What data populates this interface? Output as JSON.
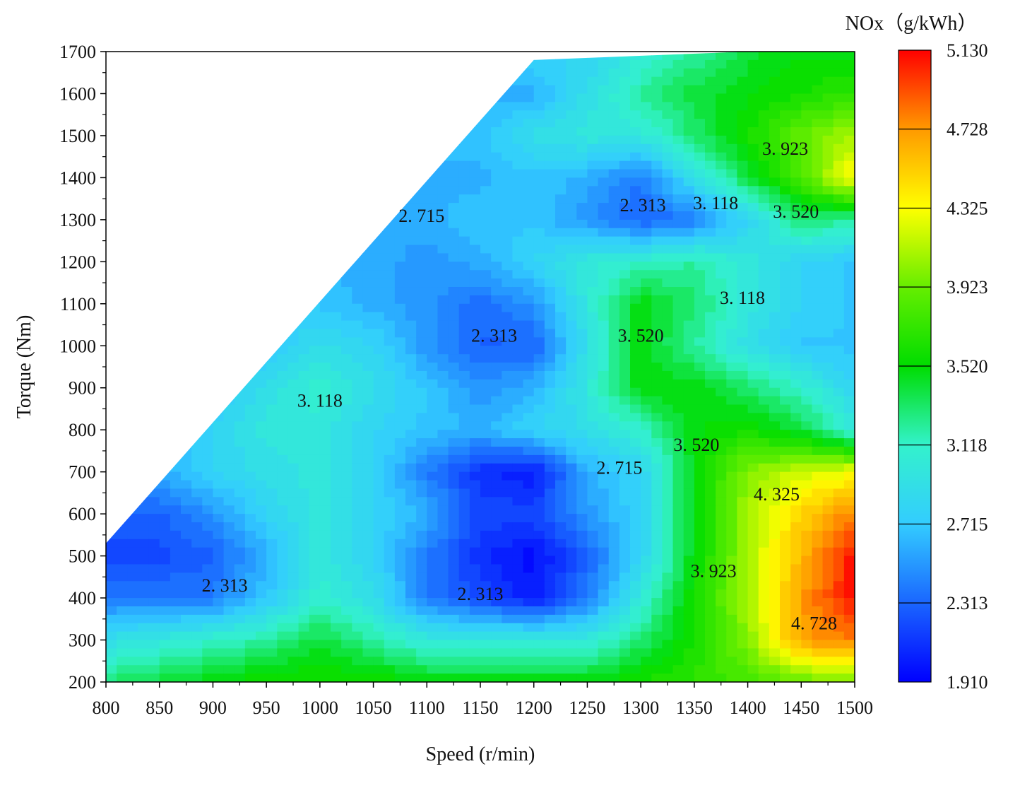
{
  "chart_data": {
    "type": "heatmap",
    "subtype": "filled-contour",
    "title": "",
    "xlabel": "Speed (r/min)",
    "ylabel": "Torque (Nm)",
    "xlim": [
      800,
      1500
    ],
    "ylim": [
      200,
      1700
    ],
    "x_ticks": [
      "800",
      "850",
      "900",
      "950",
      "1000",
      "1050",
      "1100",
      "1150",
      "1200",
      "1250",
      "1300",
      "1350",
      "1400",
      "1450",
      "1500"
    ],
    "y_ticks": [
      "200",
      "300",
      "400",
      "500",
      "600",
      "700",
      "800",
      "900",
      "1000",
      "1100",
      "1200",
      "1300",
      "1400",
      "1500",
      "1600",
      "1700"
    ],
    "colorbar": {
      "title": "NOx（g/kWh）",
      "min": 1.91,
      "max": 5.13,
      "tick_labels": [
        "1.910",
        "2.313",
        "2.715",
        "3.118",
        "3.520",
        "3.923",
        "4.325",
        "4.728",
        "5.130"
      ],
      "tick_values": [
        1.91,
        2.313,
        2.715,
        3.118,
        3.52,
        3.923,
        4.325,
        4.728,
        5.13
      ],
      "colors": [
        "#0000ff",
        "#1a66ff",
        "#33ccff",
        "#33f2cc",
        "#00dd00",
        "#66ee00",
        "#ffff00",
        "#ff9900",
        "#ff0000"
      ]
    },
    "boundary": {
      "description": "data region bounded by maximum torque line",
      "points": [
        [
          800,
          530
        ],
        [
          1200,
          1680
        ],
        [
          1500,
          1710
        ]
      ]
    },
    "contour_labels": [
      {
        "text": "2. 715",
        "x": 1095,
        "y": 1310
      },
      {
        "text": "2. 313",
        "x": 1302,
        "y": 1335
      },
      {
        "text": "3. 118",
        "x": 1370,
        "y": 1340
      },
      {
        "text": "3. 520",
        "x": 1445,
        "y": 1320
      },
      {
        "text": "3. 923",
        "x": 1435,
        "y": 1470
      },
      {
        "text": "3. 118",
        "x": 1395,
        "y": 1115
      },
      {
        "text": "2. 313",
        "x": 1163,
        "y": 1025
      },
      {
        "text": "3. 520",
        "x": 1300,
        "y": 1025
      },
      {
        "text": "3. 118",
        "x": 1000,
        "y": 870
      },
      {
        "text": "3. 520",
        "x": 1352,
        "y": 765
      },
      {
        "text": "2. 715",
        "x": 1280,
        "y": 710
      },
      {
        "text": "4. 325",
        "x": 1427,
        "y": 647
      },
      {
        "text": "2. 313",
        "x": 911,
        "y": 430
      },
      {
        "text": "2. 313",
        "x": 1150,
        "y": 410
      },
      {
        "text": "3. 923",
        "x": 1368,
        "y": 465
      },
      {
        "text": "4. 728",
        "x": 1462,
        "y": 340
      }
    ],
    "value_field": {
      "x": [
        800,
        850,
        900,
        950,
        1000,
        1050,
        1100,
        1150,
        1200,
        1250,
        1300,
        1350,
        1400,
        1450,
        1500
      ],
      "y": [
        200,
        300,
        400,
        500,
        600,
        700,
        800,
        900,
        1000,
        1100,
        1200,
        1300,
        1400,
        1500,
        1600,
        1700
      ],
      "z": [
        [
          3.3,
          3.4,
          3.5,
          3.6,
          3.6,
          3.6,
          3.5,
          3.5,
          3.5,
          3.5,
          3.6,
          3.7,
          3.8,
          3.9,
          4.0
        ],
        [
          2.9,
          3.0,
          3.1,
          3.2,
          3.4,
          3.2,
          3.0,
          3.0,
          3.0,
          3.0,
          3.3,
          3.6,
          4.0,
          4.7,
          4.8
        ],
        [
          2.4,
          2.4,
          2.4,
          2.7,
          3.1,
          2.9,
          2.4,
          2.2,
          2.0,
          2.4,
          3.0,
          3.6,
          4.1,
          4.7,
          5.1
        ],
        [
          2.2,
          2.2,
          2.3,
          2.6,
          3.0,
          2.8,
          2.4,
          2.1,
          1.95,
          2.3,
          2.8,
          3.5,
          4.1,
          4.6,
          5.1
        ],
        [
          2.3,
          2.3,
          2.5,
          2.8,
          3.0,
          2.8,
          2.6,
          2.2,
          2.2,
          2.5,
          2.8,
          3.5,
          4.1,
          4.5,
          4.8
        ],
        [
          2.5,
          2.6,
          2.8,
          2.9,
          3.0,
          2.8,
          2.4,
          2.1,
          2.0,
          2.6,
          2.8,
          3.5,
          4.0,
          4.2,
          4.3
        ],
        [
          null,
          2.6,
          2.8,
          3.0,
          3.0,
          2.8,
          2.7,
          2.6,
          2.8,
          2.9,
          3.1,
          3.5,
          3.6,
          3.4,
          3.0
        ],
        [
          null,
          null,
          2.7,
          2.9,
          3.1,
          2.9,
          2.7,
          2.5,
          2.6,
          3.0,
          3.5,
          3.5,
          3.3,
          3.1,
          2.8
        ],
        [
          null,
          null,
          null,
          2.7,
          2.9,
          2.8,
          2.5,
          2.3,
          2.3,
          2.9,
          3.5,
          3.2,
          2.9,
          2.7,
          2.7
        ],
        [
          null,
          null,
          null,
          null,
          2.7,
          2.6,
          2.5,
          2.35,
          2.5,
          3.0,
          3.5,
          3.3,
          3.0,
          2.8,
          2.7
        ],
        [
          null,
          null,
          null,
          null,
          null,
          2.6,
          2.5,
          2.6,
          2.8,
          3.0,
          3.1,
          3.2,
          3.0,
          2.8,
          2.7
        ],
        [
          null,
          null,
          null,
          null,
          null,
          null,
          2.6,
          2.7,
          2.7,
          2.5,
          2.3,
          2.4,
          2.8,
          3.3,
          3.2
        ],
        [
          null,
          null,
          null,
          null,
          null,
          null,
          null,
          2.6,
          2.7,
          2.6,
          2.4,
          2.9,
          3.4,
          3.8,
          4.4
        ],
        [
          null,
          null,
          null,
          null,
          null,
          null,
          null,
          2.7,
          2.9,
          3.0,
          3.0,
          3.3,
          3.6,
          3.9,
          4.1
        ],
        [
          null,
          null,
          null,
          null,
          null,
          null,
          null,
          null,
          2.6,
          2.9,
          3.2,
          3.4,
          3.5,
          3.6,
          3.7
        ],
        [
          null,
          null,
          null,
          null,
          null,
          null,
          null,
          null,
          null,
          2.8,
          3.0,
          3.2,
          3.4,
          3.5,
          3.5
        ]
      ]
    }
  }
}
